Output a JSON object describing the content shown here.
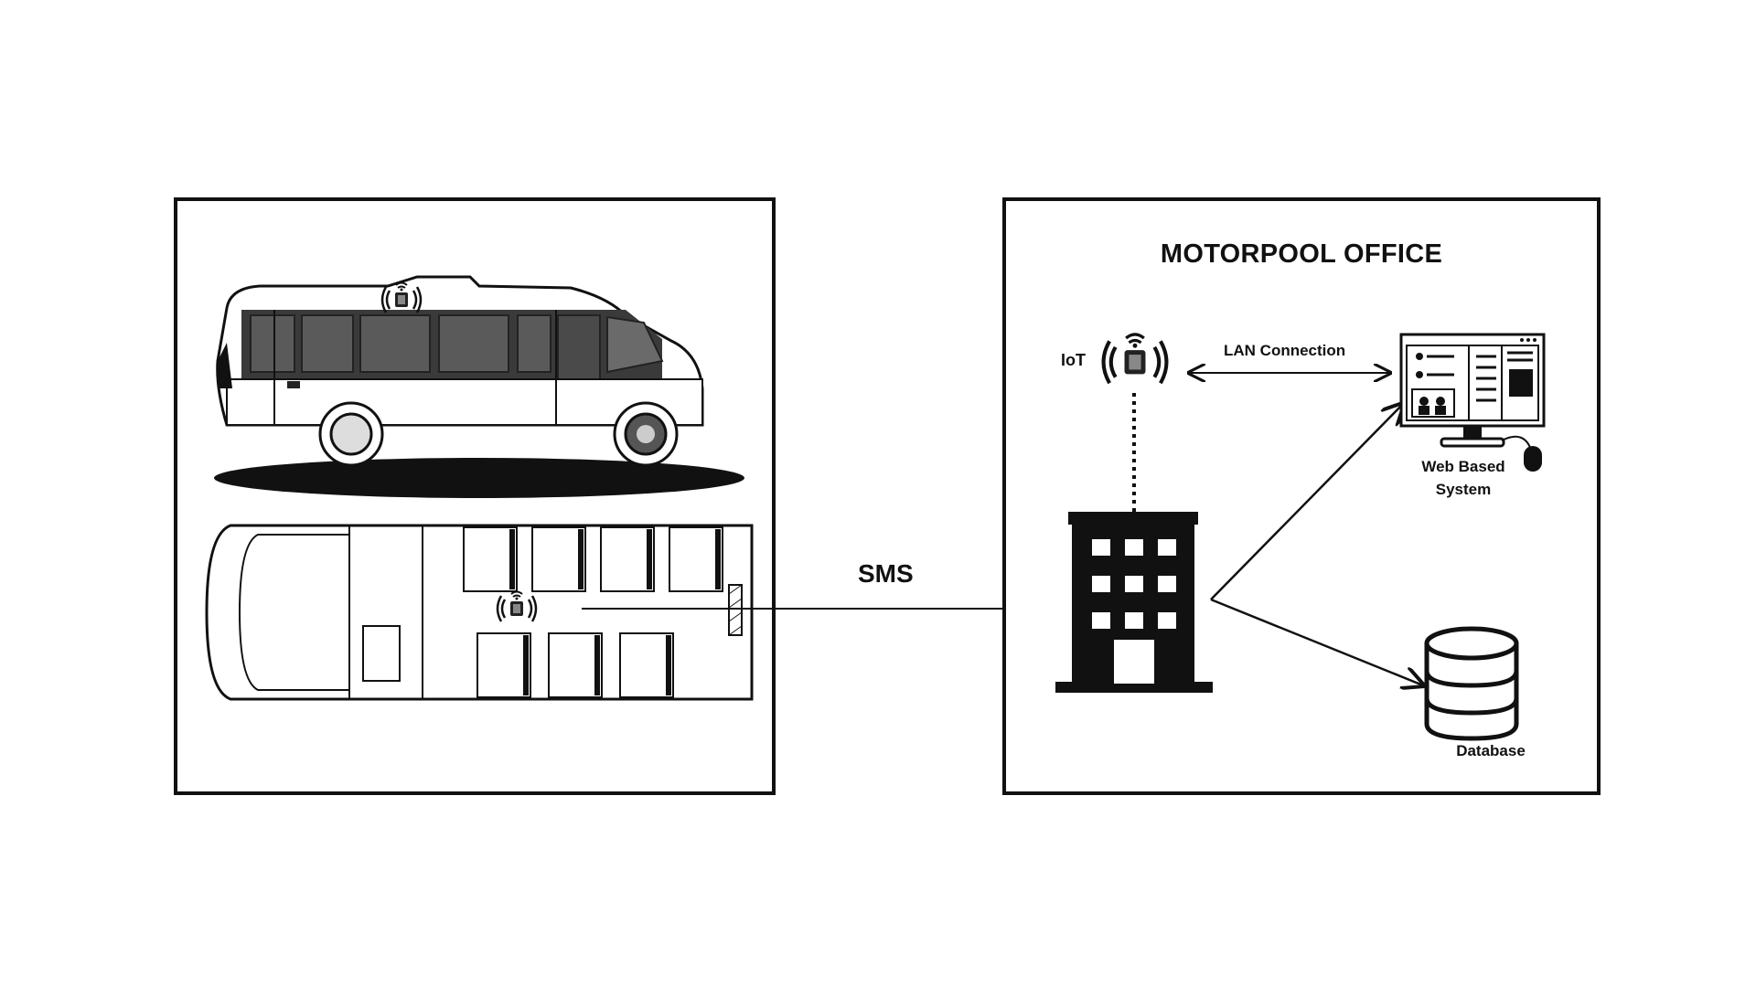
{
  "office": {
    "title": "MOTORPOOL OFFICE",
    "iot_label": "IoT",
    "lan_label": "LAN Connection",
    "web_label": "Web Based System",
    "db_label": "Database"
  },
  "link": {
    "sms_label": "SMS"
  },
  "icons": {
    "vehicle_side": "minibus-side-icon",
    "vehicle_top": "minibus-top-icon",
    "iot_device": "iot-device-icon",
    "building": "office-building-icon",
    "computer": "desktop-computer-icon",
    "database": "database-icon"
  }
}
